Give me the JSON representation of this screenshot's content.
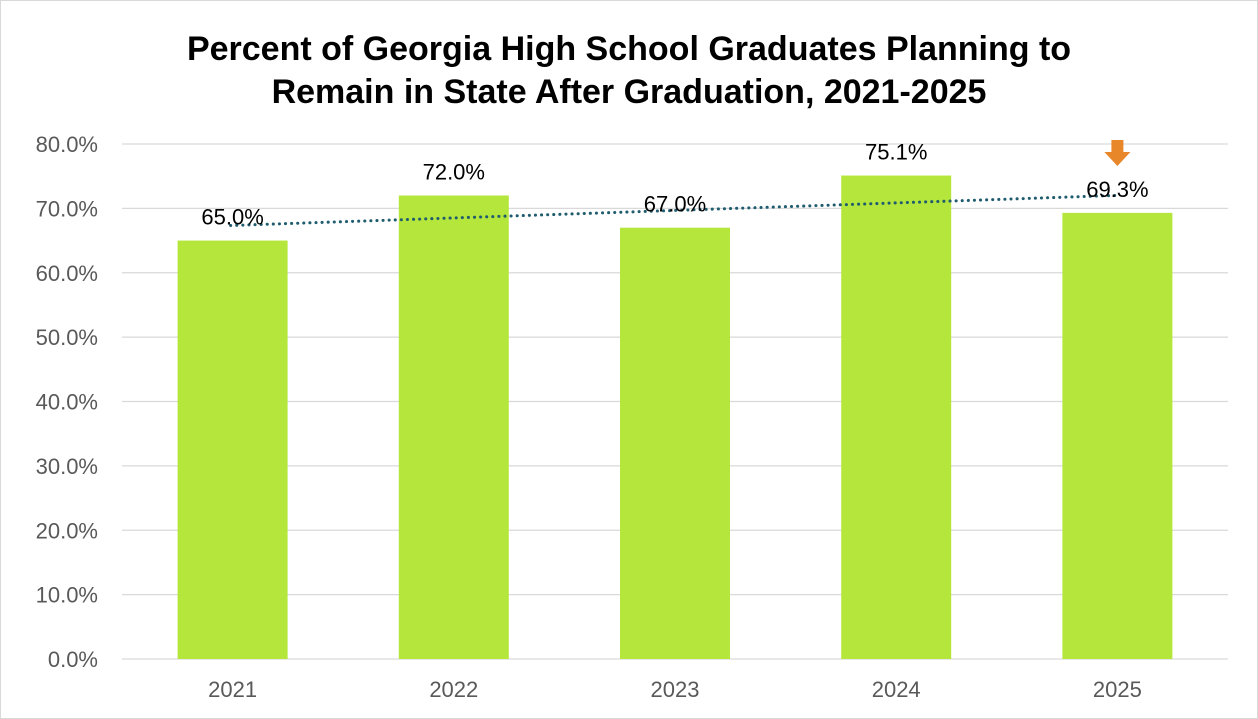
{
  "chart_data": {
    "type": "bar",
    "title_lines": [
      "Percent of Georgia High School Graduates Planning to",
      "Remain in State After Graduation, 2021-2025"
    ],
    "categories": [
      "2021",
      "2022",
      "2023",
      "2024",
      "2025"
    ],
    "values": [
      65.0,
      72.0,
      67.0,
      75.1,
      69.3
    ],
    "data_labels": [
      "65.0%",
      "72.0%",
      "67.0%",
      "75.1%",
      "69.3%"
    ],
    "xlabel": "",
    "ylabel": "",
    "ylim": [
      0,
      80
    ],
    "y_ticks": [
      0,
      10,
      20,
      30,
      40,
      50,
      60,
      70,
      80
    ],
    "y_tick_labels": [
      "0.0%",
      "10.0%",
      "20.0%",
      "30.0%",
      "40.0%",
      "50.0%",
      "60.0%",
      "70.0%",
      "80.0%"
    ],
    "grid": true,
    "legend": "none",
    "trendline": {
      "type": "linear",
      "style": "dotted",
      "color": "#1f5c6e"
    },
    "annotation": {
      "type": "down-arrow",
      "category": "2025",
      "color": "#e8862a"
    },
    "colors": {
      "bar": "#b5e63b",
      "grid": "#d9d9d9",
      "tick_text": "#595959"
    }
  }
}
